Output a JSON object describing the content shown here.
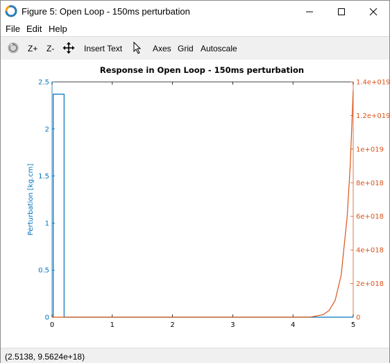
{
  "window": {
    "title": "Figure 5: Open Loop - 150ms perturbation"
  },
  "menu": {
    "items": [
      "File",
      "Edit",
      "Help"
    ]
  },
  "toolbar": {
    "zoom_in": "Z+",
    "zoom_out": "Z-",
    "insert_text": "Insert Text",
    "axes": "Axes",
    "grid": "Grid",
    "autoscale": "Autoscale"
  },
  "status": {
    "coordinates": "(2.5138, 9.5624e+18)"
  },
  "colors": {
    "left_axis": "#0072bd",
    "right_axis": "#d95319"
  },
  "chart_data": {
    "type": "line",
    "title": "Response in Open Loop - 150ms perturbation",
    "xlim": [
      0,
      5
    ],
    "x_ticks": [
      0,
      1,
      2,
      3,
      4,
      5
    ],
    "x_tick_labels": [
      "0",
      "1",
      "2",
      "3",
      "4",
      "5"
    ],
    "left_axis": {
      "label": "Perturbation [kg.cm]",
      "ylim": [
        0,
        2.5
      ],
      "ticks": [
        0,
        0.5,
        1,
        1.5,
        2,
        2.5
      ],
      "tick_labels": [
        "0",
        "0.5",
        "1",
        "1.5",
        "2",
        "2.5"
      ],
      "color": "#0072bd"
    },
    "right_axis": {
      "label": "",
      "ylim": [
        0,
        1.4e+19
      ],
      "ticks": [
        0,
        2e+18,
        4e+18,
        6e+18,
        8e+18,
        1e+19,
        1.2e+19,
        1.4e+19
      ],
      "tick_labels": [
        "0",
        "2e+018",
        "4e+018",
        "6e+018",
        "8e+018",
        "1e+019",
        "1.2e+019",
        "1.4e+019"
      ],
      "color": "#d95319"
    },
    "series": [
      {
        "axis": "left",
        "color": "#0072bd",
        "x": [
          0,
          0.02,
          0.02,
          0.2,
          0.2,
          5
        ],
        "y": [
          0,
          0,
          2.37,
          2.37,
          0,
          0
        ]
      },
      {
        "axis": "right",
        "color": "#d95319",
        "x": [
          0,
          4.0,
          4.3,
          4.5,
          4.6,
          4.7,
          4.8,
          4.9,
          4.95,
          5.0
        ],
        "y": [
          0,
          0,
          1e+16,
          1.5e+17,
          4e+17,
          1e+18,
          2.5e+18,
          6e+18,
          9e+18,
          1.35e+19
        ]
      }
    ],
    "grid": false
  }
}
